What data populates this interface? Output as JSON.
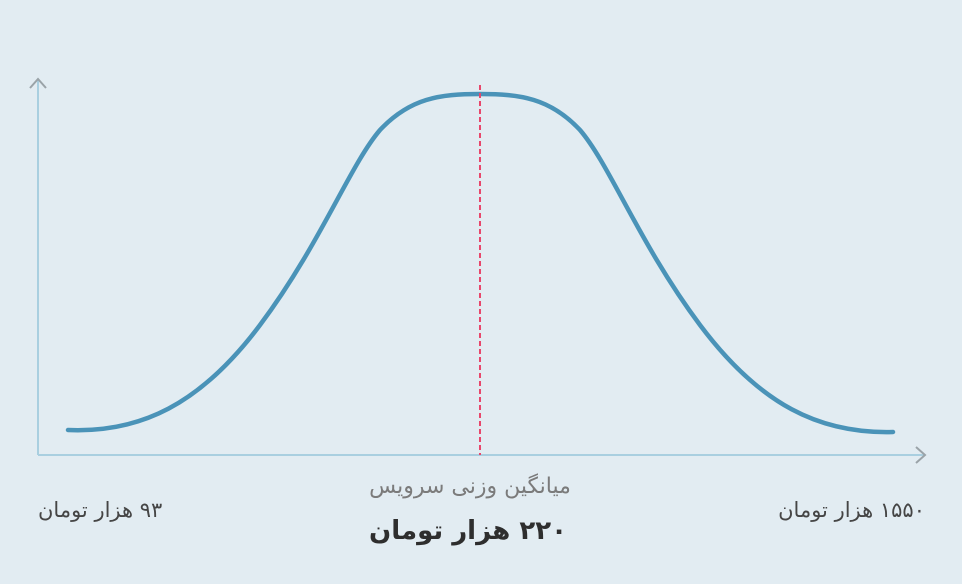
{
  "center_label": "میانگین وزنی سرویس",
  "center_value": "۲۲۰ هزار تومان",
  "min_label": "۹۳ هزار تومان",
  "max_label": "۱۵۵۰ هزار تومان"
}
